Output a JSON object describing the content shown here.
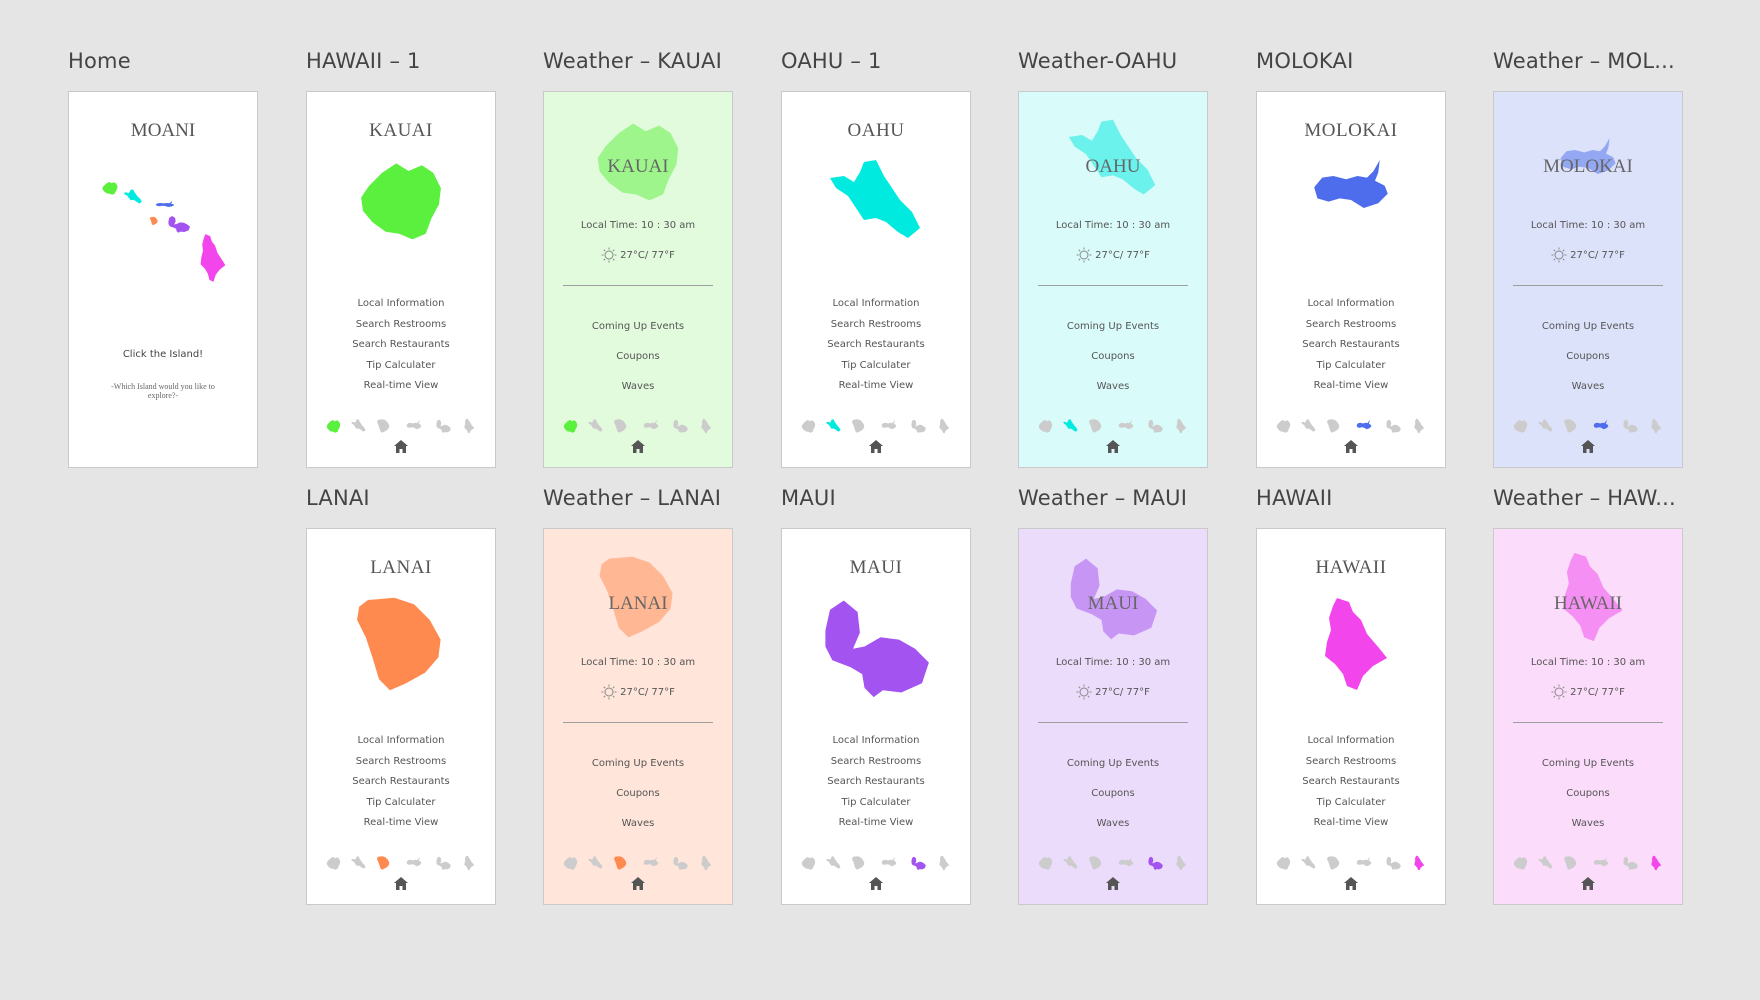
{
  "colors": {
    "kauai": "#5cf03e",
    "oahu": "#00eadf",
    "molokai": "#4e6ded",
    "lanai": "#ff8a50",
    "maui": "#a353f0",
    "hawaii": "#f245ec",
    "inactive": "#cccccc",
    "home_icon": "#555555"
  },
  "home": {
    "artboard_label": "Home",
    "title": "MOANI",
    "cta": "Click the Island!",
    "subtitle": "-Which Island would you like to explore?-"
  },
  "island_menu": [
    "Local Information",
    "Search Restrooms",
    "Search Restaurants",
    "Tip Calculater",
    "Real-time View"
  ],
  "weather": {
    "local_time": "Local Time: 10 : 30 am",
    "temperature": "27°C/ 77°F",
    "menu": [
      "Coming Up Events",
      "Coupons",
      "Waves"
    ]
  },
  "screens": {
    "kauai": {
      "label": "HAWAII – 1",
      "title": "KAUAI"
    },
    "kauai_weather": {
      "label": "Weather – KAUAI",
      "title": "KAUAI"
    },
    "oahu": {
      "label": "OAHU – 1",
      "title": "OAHU"
    },
    "oahu_weather": {
      "label": "Weather-OAHU",
      "title": "OAHU"
    },
    "molokai": {
      "label": "MOLOKAI",
      "title": "MOLOKAI"
    },
    "molokai_weather": {
      "label": "Weather – MOL...",
      "title": "MOLOKAI"
    },
    "lanai": {
      "label": "LANAI",
      "title": "LANAI"
    },
    "lanai_weather": {
      "label": "Weather – LANAI",
      "title": "LANAI"
    },
    "maui": {
      "label": "MAUI",
      "title": "MAUI"
    },
    "maui_weather": {
      "label": "Weather – MAUI",
      "title": "MAUI"
    },
    "hawaii": {
      "label": "HAWAII",
      "title": "HAWAII"
    },
    "hawaii_weather": {
      "label": "Weather – HAW...",
      "title": "HAWAII"
    }
  },
  "icons": {
    "home": "home-icon",
    "sun": "sun-icon",
    "islands": [
      "kauai-icon",
      "oahu-icon",
      "lanai-icon",
      "molokai-icon",
      "maui-icon",
      "hawaii-icon"
    ]
  }
}
